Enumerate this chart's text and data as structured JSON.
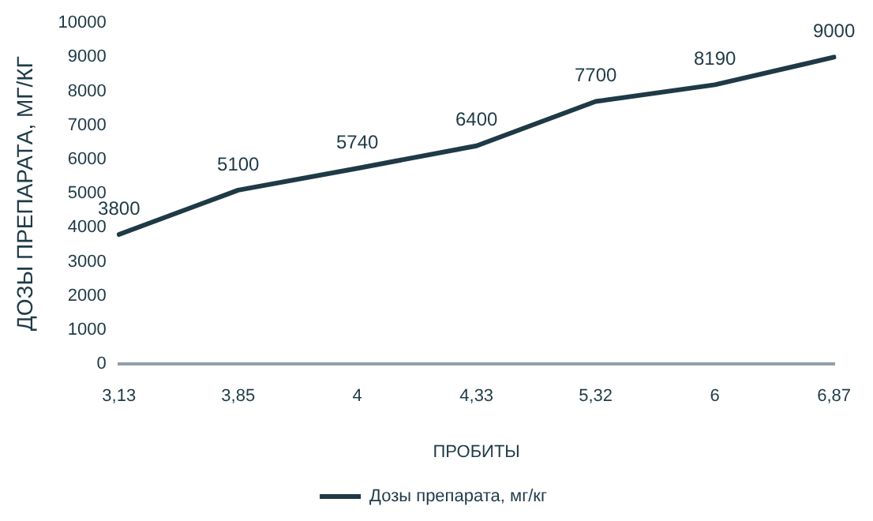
{
  "chart_data": {
    "type": "line",
    "xlabel": "ПРОБИТЫ",
    "ylabel": "ДОЗЫ ПРЕПАРАТА, МГ/КГ",
    "categories": [
      "3,13",
      "3,85",
      "4",
      "4,33",
      "5,32",
      "6",
      "6,87"
    ],
    "series": [
      {
        "name": "Дозы препарата, мг/кг",
        "color": "#1e3a46",
        "values": [
          3800,
          5100,
          5740,
          6400,
          7700,
          8190,
          9000
        ]
      }
    ],
    "ylim": [
      0,
      10000
    ],
    "yticks": [
      0,
      1000,
      2000,
      3000,
      4000,
      5000,
      6000,
      7000,
      8000,
      9000,
      10000
    ],
    "grid": false,
    "legend": "bottom",
    "data_labels": true,
    "marker": "none",
    "line_style": "solid"
  }
}
